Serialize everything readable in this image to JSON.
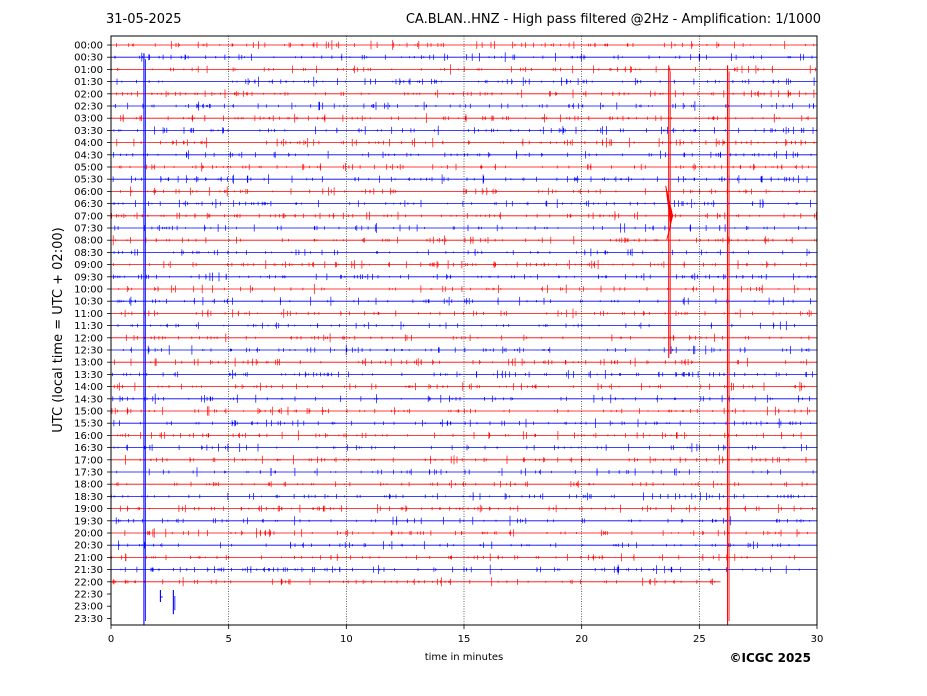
{
  "header": {
    "date": "31-05-2025",
    "title": "CA.BLAN..HNZ - High pass filtered @2Hz - Amplification: 1/1000"
  },
  "footer": {
    "copyright": "©ICGC 2025"
  },
  "colors": {
    "trace_a": "#ff0000",
    "trace_b": "#0000ff",
    "grid": "#000000",
    "background": "#ffffff"
  },
  "chart_data": {
    "type": "line",
    "title": "CA.BLAN..HNZ - High pass filtered @2Hz - Amplification: 1/1000",
    "xlabel": "time in minutes",
    "ylabel": "UTC (local time = UTC + 02:00)",
    "xlim": [
      0,
      30
    ],
    "x_ticks": [
      "0",
      "5",
      "10",
      "15",
      "20",
      "25",
      "30"
    ],
    "x_tick_values": [
      0,
      5,
      10,
      15,
      20,
      25,
      30
    ],
    "grid": "vertical dotted lines at 5-minute intervals",
    "row_labels": [
      "00:00",
      "00:30",
      "01:00",
      "01:30",
      "02:00",
      "02:30",
      "03:00",
      "03:30",
      "04:00",
      "04:30",
      "05:00",
      "05:30",
      "06:00",
      "06:30",
      "07:00",
      "07:30",
      "08:00",
      "08:30",
      "09:00",
      "09:30",
      "10:00",
      "10:30",
      "11:00",
      "11:30",
      "12:00",
      "12:30",
      "13:00",
      "13:30",
      "14:00",
      "14:30",
      "15:00",
      "15:30",
      "16:00",
      "16:30",
      "17:00",
      "17:30",
      "18:00",
      "18:30",
      "19:00",
      "19:30",
      "20:00",
      "20:30",
      "21:00",
      "21:30",
      "22:00",
      "22:30",
      "23:00",
      "23:30"
    ],
    "row_colors": "alternating red and blue per 30-minute row",
    "data_end": {
      "row": "22:00",
      "minute": 25.9
    },
    "events": [
      {
        "row_start": "01:00",
        "row_end": "12:30",
        "minute": 23.7,
        "peak_row": "07:00",
        "color": "red",
        "description": "large-amplitude transient spanning many rows"
      },
      {
        "row_start": "01:00",
        "row_end": "23:30",
        "minute": 26.2,
        "color": "red",
        "description": "tall vertical spike spanning many rows"
      },
      {
        "row_start": "00:30",
        "row_end": "23:30",
        "minute": 1.4,
        "color": "blue",
        "description": "vertical spike line"
      },
      {
        "row_start": "22:30",
        "row_end": "22:30",
        "minute": 2.1,
        "color": "blue",
        "description": "step transient"
      },
      {
        "row_start": "22:30",
        "row_end": "23:00",
        "minute": 2.65,
        "color": "blue",
        "description": "step transient"
      }
    ]
  }
}
